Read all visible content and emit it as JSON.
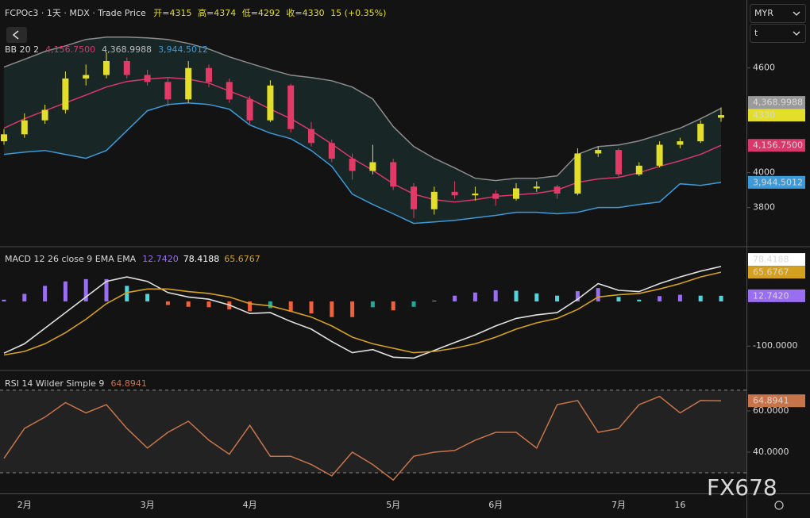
{
  "header": {
    "symbol": "FCPOc3 · 1天 · MDX · Trade Price",
    "ohlc": [
      "开=4315",
      "高=4374",
      "低=4292",
      "收=4330"
    ],
    "change": "15 (+0.35%)"
  },
  "currency": "MYR",
  "unit": "t",
  "watermark": "FX678",
  "chart_data": [
    {
      "type": "candlestick",
      "title": "BB 20 2",
      "categories": [
        null,
        "2月",
        null,
        null,
        null,
        null,
        null,
        "3月",
        null,
        null,
        null,
        null,
        "4月",
        null,
        null,
        null,
        null,
        null,
        null,
        "5月",
        null,
        null,
        null,
        null,
        "6月",
        null,
        null,
        null,
        null,
        null,
        "7月",
        null,
        null,
        "16",
        null,
        null
      ],
      "open": [
        4180,
        4220,
        4300,
        4360,
        4540,
        4560,
        4640,
        4560,
        4520,
        4420,
        4600,
        4520,
        4420,
        4300,
        4500,
        4250,
        4170,
        4080,
        4010,
        4060,
        3920,
        3790,
        3890,
        3870,
        3880,
        3850,
        3910,
        3920,
        3880,
        4110,
        4130,
        3990,
        4040,
        4160,
        4180,
        4315
      ],
      "high": [
        4250,
        4340,
        4390,
        4580,
        4620,
        4690,
        4660,
        4590,
        4540,
        4640,
        4620,
        4540,
        4440,
        4530,
        4510,
        4290,
        4190,
        4110,
        4160,
        4080,
        3940,
        3920,
        3950,
        3920,
        3900,
        3940,
        3950,
        3930,
        4140,
        4150,
        4140,
        4060,
        4180,
        4200,
        4300,
        4374
      ],
      "low": [
        4160,
        4200,
        4280,
        4340,
        4500,
        4540,
        4540,
        4500,
        4380,
        4400,
        4490,
        4400,
        4280,
        4290,
        4230,
        4150,
        4060,
        3960,
        3990,
        3900,
        3740,
        3760,
        3850,
        3840,
        3810,
        3840,
        3890,
        3850,
        3870,
        4090,
        3970,
        3980,
        4030,
        4140,
        4170,
        4292
      ],
      "close": [
        4220,
        4300,
        4360,
        4540,
        4560,
        4640,
        4560,
        4520,
        4420,
        4600,
        4520,
        4420,
        4300,
        4500,
        4250,
        4170,
        4080,
        4010,
        4060,
        3920,
        3790,
        3890,
        3870,
        3880,
        3850,
        3910,
        3920,
        3880,
        4110,
        4130,
        3990,
        4040,
        4160,
        4180,
        4280,
        4330
      ],
      "up_color": "#e2de2a",
      "down_color": "#e23a66",
      "series": [
        {
          "color": "#d8386a",
          "last_value_label": "4,156.7500",
          "values": [
            4255,
            4309,
            4355,
            4400,
            4445,
            4491,
            4523,
            4536,
            4545,
            4536,
            4514,
            4468,
            4423,
            4364,
            4309,
            4241,
            4164,
            4082,
            4014,
            3936,
            3877,
            3845,
            3832,
            3845,
            3864,
            3873,
            3882,
            3900,
            3945,
            3964,
            3973,
            4000,
            4036,
            4068,
            4105,
            4156.75
          ]
        },
        {
          "color": "#8c8c8c",
          "last_value_label": "4,368.9988",
          "values": [
            4605,
            4650,
            4695,
            4727,
            4764,
            4777,
            4777,
            4773,
            4764,
            4741,
            4709,
            4664,
            4627,
            4591,
            4559,
            4545,
            4527,
            4491,
            4423,
            4264,
            4150,
            4082,
            4027,
            3968,
            3955,
            3968,
            3968,
            3982,
            4105,
            4150,
            4159,
            4182,
            4218,
            4255,
            4309,
            4368.9988
          ]
        },
        {
          "color": "#3d9ad8",
          "last_value_label": "3,944.5012",
          "values": [
            4105,
            4118,
            4127,
            4105,
            4082,
            4127,
            4241,
            4355,
            4391,
            4400,
            4391,
            4364,
            4273,
            4227,
            4195,
            4127,
            4036,
            3877,
            3818,
            3764,
            3709,
            3718,
            3727,
            3741,
            3755,
            3773,
            3773,
            3764,
            3773,
            3800,
            3800,
            3818,
            3832,
            3936,
            3927,
            3944.5012
          ]
        }
      ],
      "band_fill": "#1b2a2a",
      "ylim": [
        3580,
        4990
      ],
      "yticks": [
        3800,
        4000,
        4600
      ]
    },
    {
      "type": "macd",
      "title": "MACD 12 26 close 9 EMA EMA",
      "histogram": {
        "last_value_label": "12.7420",
        "colors": {
          "up_rising": "#9a6ef0",
          "up_falling": "#4fd6dc",
          "down_rising": "#26a69a",
          "down_falling": "#f0603a"
        },
        "values": [
          4,
          17,
          35,
          45,
          50,
          50,
          35,
          17,
          -8,
          -12,
          -13,
          -18,
          -22,
          -15,
          -23,
          -27,
          -35,
          -35,
          -13,
          -20,
          -12,
          2,
          13,
          20,
          25,
          24,
          18,
          13,
          23,
          30,
          10,
          4,
          12,
          15,
          13,
          12.742
        ]
      },
      "series": [
        {
          "color": "#e0e0e0",
          "last_value_label": "78.4188",
          "values": [
            -116,
            -95,
            -60,
            -25,
            10,
            45,
            55,
            45,
            20,
            10,
            5,
            -8,
            -27,
            -25,
            -45,
            -62,
            -90,
            -115,
            -108,
            -125,
            -127,
            -110,
            -92,
            -75,
            -55,
            -38,
            -30,
            -25,
            5,
            40,
            25,
            22,
            40,
            55,
            68,
            78.4188
          ]
        },
        {
          "color": "#d4a020",
          "last_value_label": "65.6767",
          "values": [
            -120,
            -112,
            -95,
            -70,
            -40,
            -5,
            20,
            28,
            28,
            22,
            18,
            10,
            -5,
            -10,
            -22,
            -35,
            -55,
            -80,
            -95,
            -105,
            -115,
            -112,
            -105,
            -95,
            -80,
            -62,
            -48,
            -38,
            -18,
            10,
            15,
            18,
            28,
            40,
            55,
            65.6767
          ]
        }
      ],
      "ylim": [
        -153,
        121
      ],
      "yticks": [
        {
          "value": -100,
          "label": "-100.0000"
        }
      ]
    },
    {
      "type": "line",
      "title": "RSI 14 Wilder Simple 9",
      "series": [
        {
          "color": "#c8744a",
          "last_value_label": "64.8941",
          "values": [
            37,
            51.5,
            57,
            64,
            59,
            63,
            51.5,
            42,
            49.6,
            55,
            45.8,
            39,
            53,
            38,
            38,
            34,
            28.5,
            40,
            34,
            26.5,
            38,
            40,
            40.8,
            45.8,
            49.6,
            49.6,
            42,
            63,
            65,
            49.6,
            51.5,
            63,
            67,
            59,
            65,
            64.8941
          ]
        }
      ],
      "bands": [
        30,
        70
      ],
      "ylim": [
        20,
        79.2
      ],
      "yticks": [
        {
          "value": 40,
          "label": "40.0000"
        },
        {
          "value": 60,
          "label": "60.0000"
        }
      ]
    }
  ]
}
